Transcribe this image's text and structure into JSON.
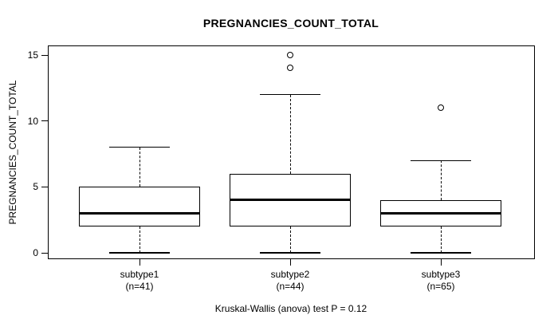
{
  "title": "PREGNANCIES_COUNT_TOTAL",
  "caption": "Kruskal-Wallis (anova) test P = 0.12",
  "colors": {
    "foreground": "#000000",
    "background": "#ffffff"
  },
  "chart_data": {
    "type": "boxplot",
    "title": "PREGNANCIES_COUNT_TOTAL",
    "xlabel": "",
    "ylabel": "PREGNANCIES_COUNT_TOTAL",
    "ylim": [
      0,
      15
    ],
    "yticks": [
      0,
      5,
      10,
      15
    ],
    "grid": false,
    "caption": "Kruskal-Wallis (anova) test P = 0.12",
    "groups": [
      {
        "label": "subtype1",
        "sublabel": "(n=41)",
        "n": 41,
        "whisker_low": 0,
        "q1": 2,
        "median": 3,
        "q3": 5,
        "whisker_high": 8,
        "outliers": []
      },
      {
        "label": "subtype2",
        "sublabel": "(n=44)",
        "n": 44,
        "whisker_low": 0,
        "q1": 2,
        "median": 4,
        "q3": 6,
        "whisker_high": 12,
        "outliers": [
          14,
          15
        ]
      },
      {
        "label": "subtype3",
        "sublabel": "(n=65)",
        "n": 65,
        "whisker_low": 0,
        "q1": 2,
        "median": 3,
        "q3": 4,
        "whisker_high": 7,
        "outliers": [
          11
        ]
      }
    ]
  }
}
